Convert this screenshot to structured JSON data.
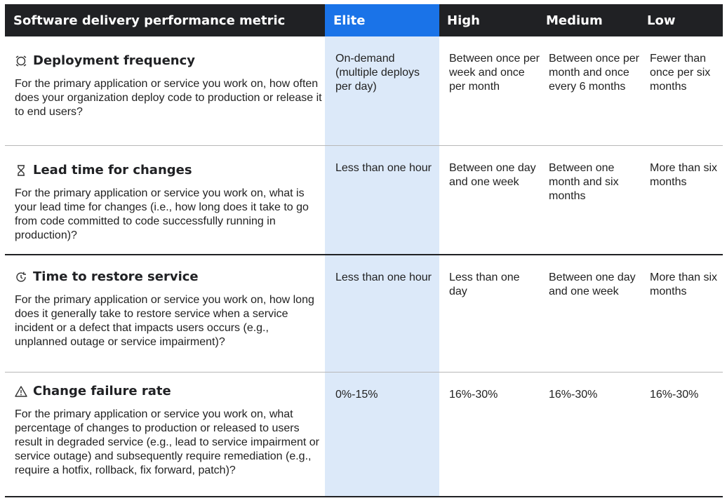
{
  "table": {
    "headers": {
      "metric": "Software delivery performance metric",
      "elite": "Elite",
      "high": "High",
      "medium": "Medium",
      "low": "Low"
    },
    "accent_colors": {
      "header_bg": "#202124",
      "elite_header": "#1a73e8",
      "elite_column": "#dce9f9"
    },
    "rows": [
      {
        "icon": "deployment-icon",
        "title": "Deployment frequency",
        "question": "For the primary application or service you work on, how often does your organization deploy code to production or release it to end users?",
        "elite": "On-demand (multiple deploys per day)",
        "high": "Between once per week and once per month",
        "medium": "Between once per month and once every 6 months",
        "low": "Fewer than once per six months"
      },
      {
        "icon": "hourglass-icon",
        "title": "Lead time for changes",
        "question": "For the primary application or service you work on, what is your lead time for changes (i.e., how long does it take to go from code committed to code successfully running in production)?",
        "elite": "Less than one hour",
        "high": "Between one day and one week",
        "medium": "Between one month and six months",
        "low": "More than six months"
      },
      {
        "icon": "restore-icon",
        "title": "Time to restore service",
        "question": "For the primary application or service you work on, how long does it generally take to restore service when a service incident or a defect that impacts users occurs (e.g., unplanned outage or service impairment)?",
        "elite": "Less than one hour",
        "high": "Less than one day",
        "medium": "Between one day and one week",
        "low": "More than six months"
      },
      {
        "icon": "warning-icon",
        "title": "Change failure rate",
        "question": "For the primary application or service you work on, what percentage of changes to production or released to users result in degraded service (e.g., lead to service impairment or service outage) and subsequently require remediation (e.g., require a hotfix, rollback, fix forward, patch)?",
        "elite": "0%-15%",
        "high": "16%-30%",
        "medium": "16%-30%",
        "low": "16%-30%"
      }
    ]
  }
}
